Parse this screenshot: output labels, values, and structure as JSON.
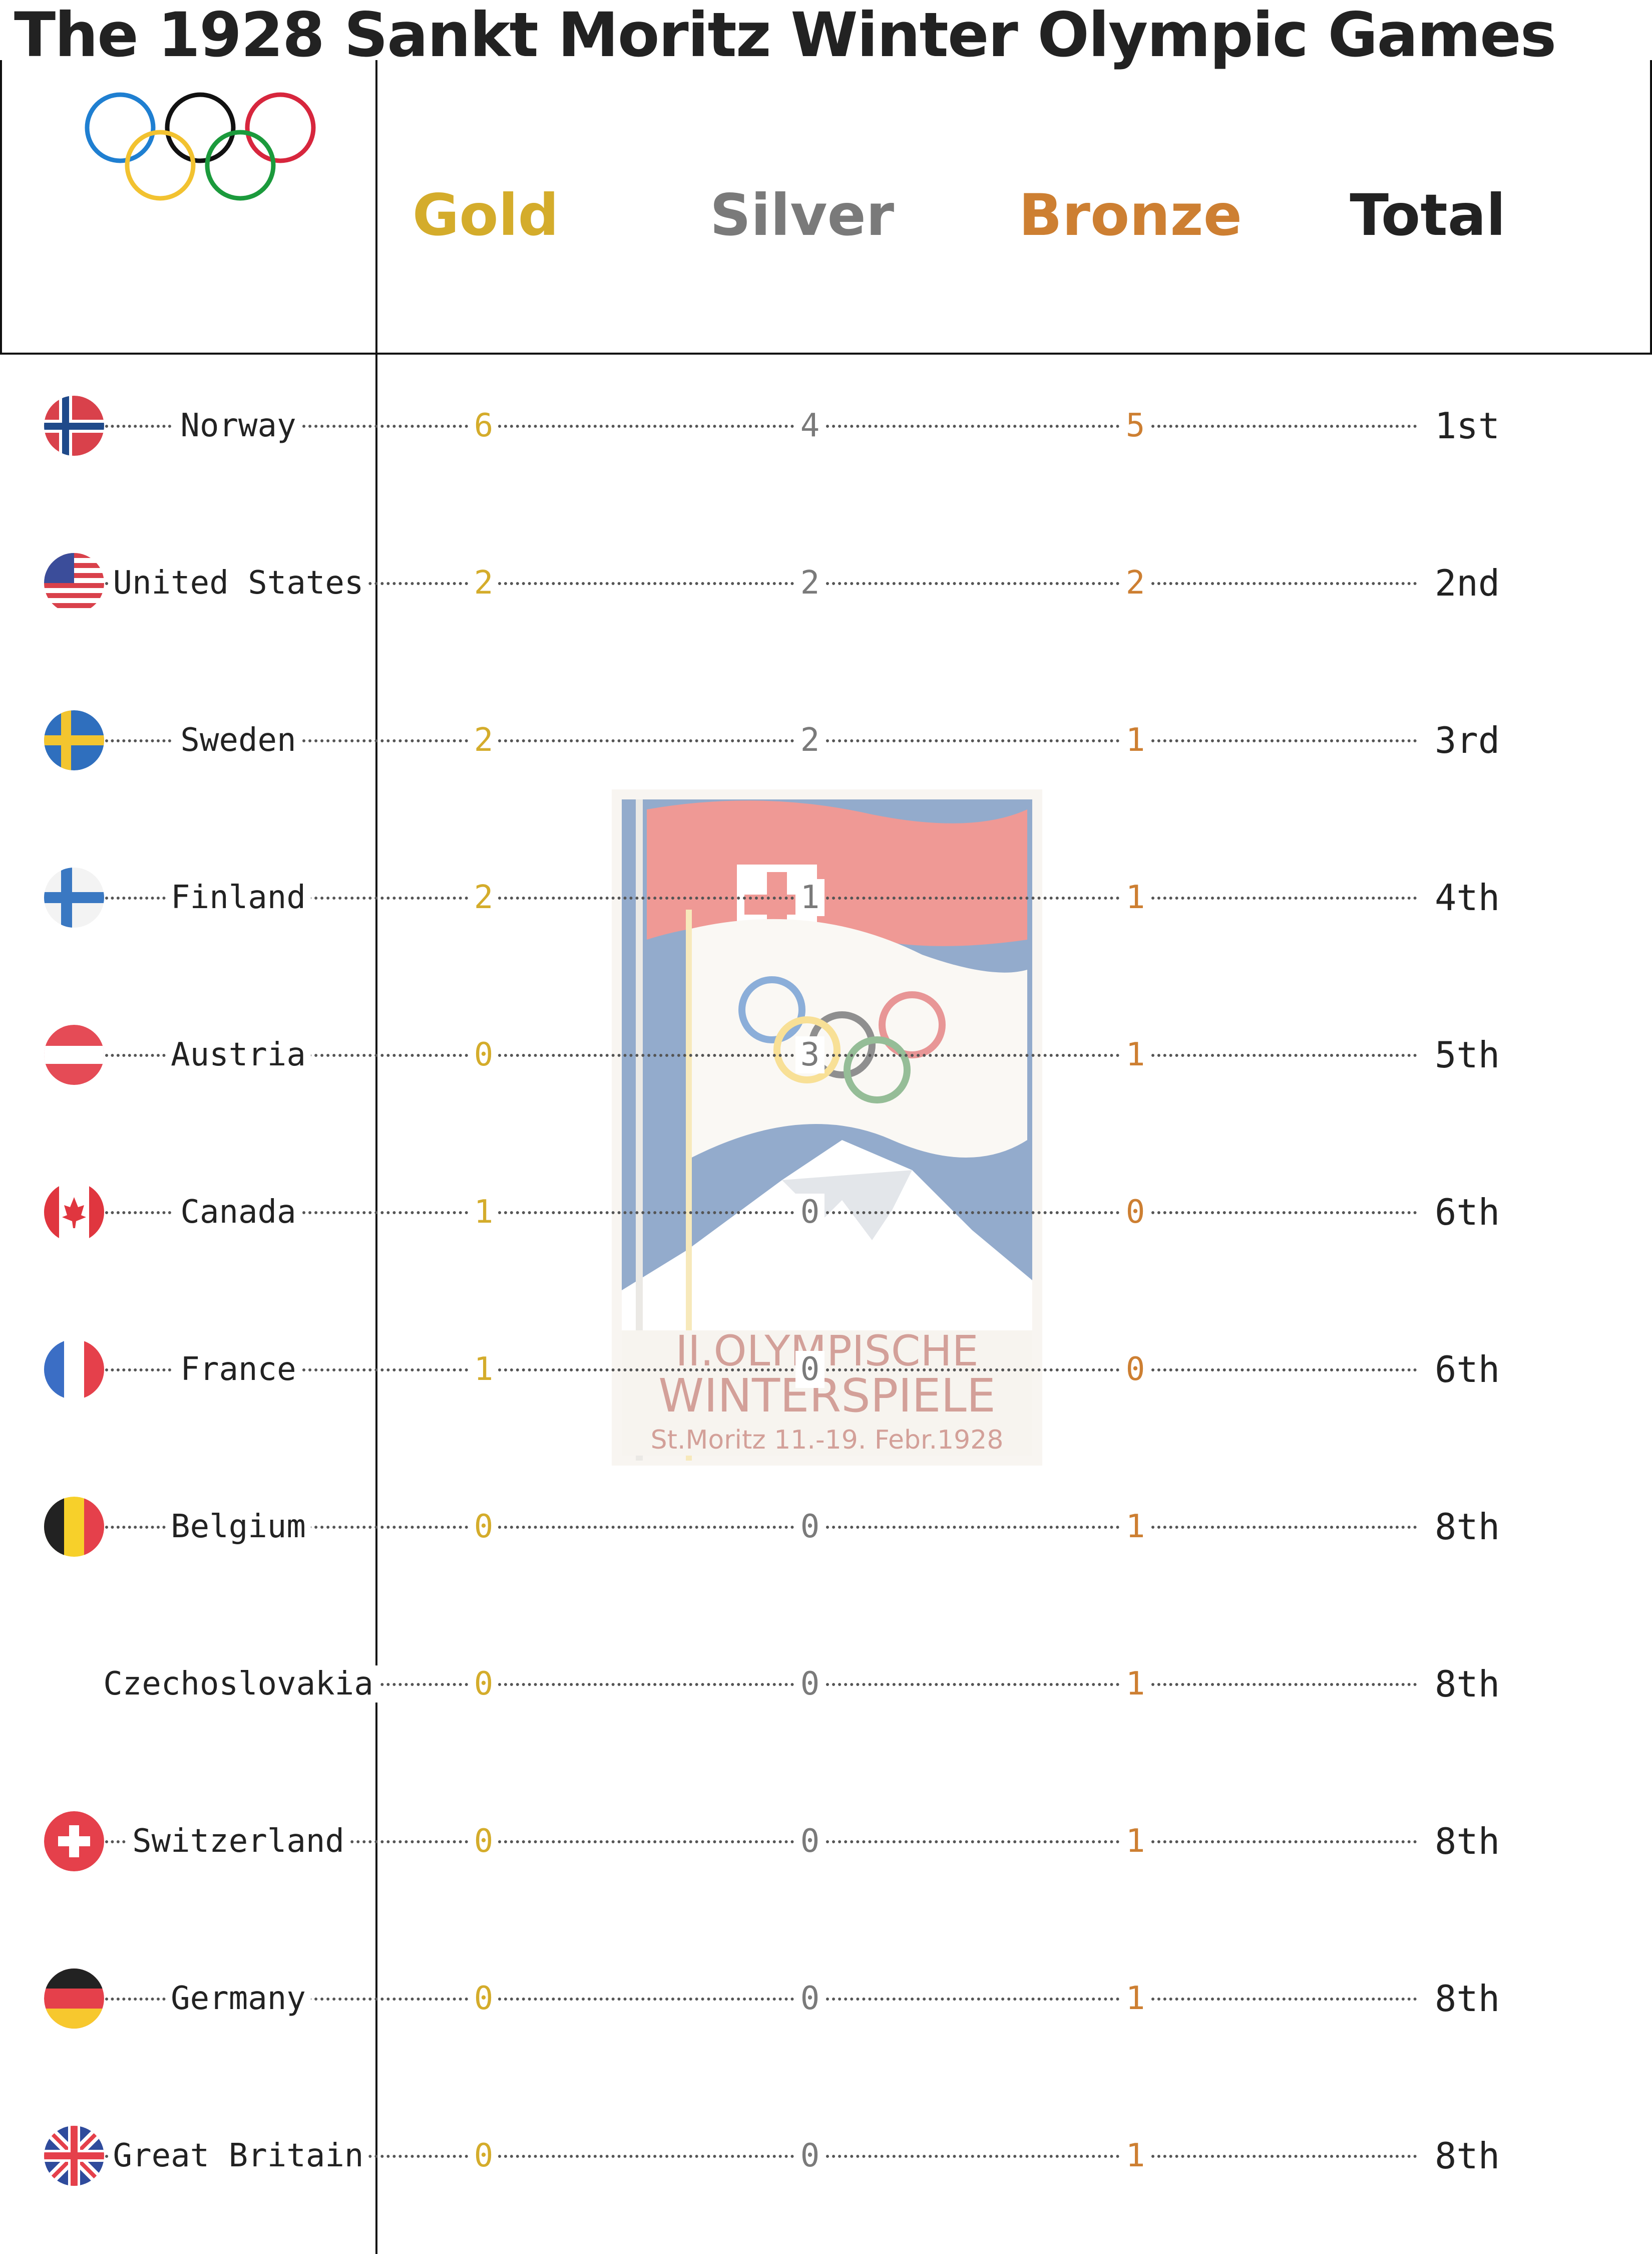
{
  "chart_data": {
    "type": "table",
    "title": "The 1928 Sankt Moritz Winter Olympic Games",
    "columns": [
      "Gold",
      "Silver",
      "Bronze",
      "Total"
    ],
    "colors": {
      "gold": "#d4ac2b",
      "silver": "#7a7a7a",
      "bronze": "#cd7f32",
      "total": "#222222",
      "background": "#ffffff"
    },
    "rows": [
      {
        "country": "Norway",
        "flag": "norway-flag",
        "gold": 6,
        "silver": 4,
        "bronze": 5,
        "rank": "1st"
      },
      {
        "country": "United States",
        "flag": "usa-flag",
        "gold": 2,
        "silver": 2,
        "bronze": 2,
        "rank": "2nd"
      },
      {
        "country": "Sweden",
        "flag": "sweden-flag",
        "gold": 2,
        "silver": 2,
        "bronze": 1,
        "rank": "3rd"
      },
      {
        "country": "Finland",
        "flag": "finland-flag",
        "gold": 2,
        "silver": 1,
        "bronze": 1,
        "rank": "4th"
      },
      {
        "country": "Austria",
        "flag": "austria-flag",
        "gold": 0,
        "silver": 3,
        "bronze": 1,
        "rank": "5th"
      },
      {
        "country": "Canada",
        "flag": "canada-flag",
        "gold": 1,
        "silver": 0,
        "bronze": 0,
        "rank": "6th"
      },
      {
        "country": "France",
        "flag": "france-flag",
        "gold": 1,
        "silver": 0,
        "bronze": 0,
        "rank": "6th"
      },
      {
        "country": "Belgium",
        "flag": "belgium-flag",
        "gold": 0,
        "silver": 0,
        "bronze": 1,
        "rank": "8th"
      },
      {
        "country": "Czechoslovakia",
        "flag": "",
        "gold": 0,
        "silver": 0,
        "bronze": 1,
        "rank": "8th"
      },
      {
        "country": "Switzerland",
        "flag": "switzerland-flag",
        "gold": 0,
        "silver": 0,
        "bronze": 1,
        "rank": "8th"
      },
      {
        "country": "Germany",
        "flag": "germany-flag",
        "gold": 0,
        "silver": 0,
        "bronze": 1,
        "rank": "8th"
      },
      {
        "country": "Great Britain",
        "flag": "great-britain-flag",
        "gold": 0,
        "silver": 0,
        "bronze": 1,
        "rank": "8th"
      }
    ]
  },
  "poster": {
    "line1": "II.OLYMPISCHE",
    "line2": "WINTERSPIELE",
    "line3": "St.Moritz 11.-19. Febr.1928"
  }
}
